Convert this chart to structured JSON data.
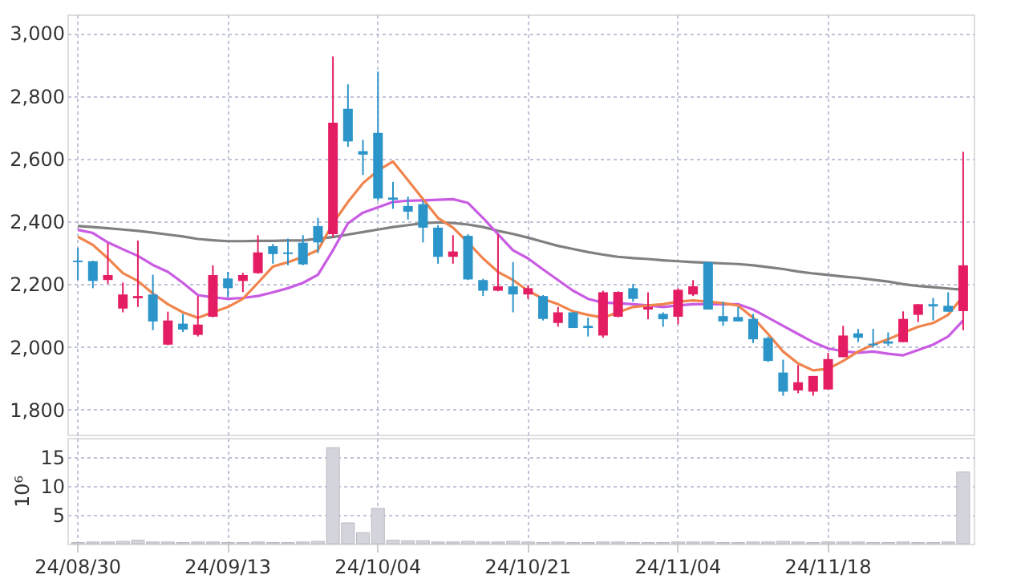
{
  "chart_data": [
    {
      "type": "candlestick",
      "categories": [
        null,
        null,
        null,
        null,
        null,
        null,
        null,
        null,
        null,
        null,
        null,
        null,
        null,
        null,
        null,
        null,
        null,
        null,
        null,
        null,
        null,
        null,
        null,
        null,
        null,
        null,
        null,
        null,
        null,
        null,
        null,
        null,
        null,
        null,
        null,
        null,
        null,
        null,
        null,
        null,
        null,
        null,
        null,
        null,
        null,
        null,
        null,
        null,
        null,
        null,
        null,
        null,
        null,
        null,
        null,
        null,
        null,
        null,
        null,
        null
      ],
      "ohlc": [
        [
          2275,
          2316,
          2213,
          2270
        ],
        [
          2273,
          2275,
          2187,
          2210
        ],
        [
          2213,
          2330,
          2201,
          2229
        ],
        [
          2122,
          2205,
          2110,
          2167
        ],
        [
          2155,
          2339,
          2127,
          2162
        ],
        [
          2167,
          2230,
          2053,
          2081
        ],
        [
          2007,
          2112,
          2005,
          2084
        ],
        [
          2074,
          2105,
          2047,
          2055
        ],
        [
          2038,
          2162,
          2033,
          2071
        ],
        [
          2096,
          2260,
          2094,
          2229
        ],
        [
          2218,
          2239,
          2158,
          2187
        ],
        [
          2210,
          2236,
          2175,
          2229
        ],
        [
          2235,
          2356,
          2233,
          2301
        ],
        [
          2321,
          2328,
          2265,
          2296
        ],
        [
          2301,
          2345,
          2260,
          2296
        ],
        [
          2332,
          2356,
          2260,
          2263
        ],
        [
          2385,
          2411,
          2299,
          2333
        ],
        [
          2359,
          2926,
          2351,
          2715
        ],
        [
          2759,
          2837,
          2638,
          2655
        ],
        [
          2624,
          2660,
          2548,
          2613
        ],
        [
          2682,
          2878,
          2466,
          2473
        ],
        [
          2476,
          2526,
          2440,
          2469
        ],
        [
          2449,
          2479,
          2406,
          2431
        ],
        [
          2455,
          2466,
          2333,
          2380
        ],
        [
          2380,
          2388,
          2265,
          2287
        ],
        [
          2287,
          2356,
          2265,
          2304
        ],
        [
          2354,
          2359,
          2213,
          2215
        ],
        [
          2213,
          2217,
          2162,
          2179
        ],
        [
          2179,
          2359,
          2177,
          2193
        ],
        [
          2193,
          2270,
          2110,
          2167
        ],
        [
          2167,
          2196,
          2153,
          2187
        ],
        [
          2162,
          2165,
          2084,
          2089
        ],
        [
          2076,
          2127,
          2064,
          2110
        ],
        [
          2110,
          2110,
          2060,
          2060
        ],
        [
          2067,
          2093,
          2033,
          2060
        ],
        [
          2036,
          2179,
          2029,
          2174
        ],
        [
          2096,
          2177,
          2094,
          2175
        ],
        [
          2187,
          2201,
          2144,
          2153
        ],
        [
          2119,
          2174,
          2088,
          2127
        ],
        [
          2105,
          2110,
          2064,
          2088
        ],
        [
          2096,
          2187,
          2072,
          2182
        ],
        [
          2167,
          2213,
          2162,
          2193
        ],
        [
          2270,
          2270,
          2119,
          2119
        ],
        [
          2098,
          2144,
          2067,
          2081
        ],
        [
          2095,
          2127,
          2081,
          2081
        ],
        [
          2089,
          2105,
          2012,
          2024
        ],
        [
          2028,
          2033,
          1952,
          1955
        ],
        [
          1918,
          1959,
          1844,
          1857
        ],
        [
          1861,
          1942,
          1852,
          1887
        ],
        [
          1857,
          1907,
          1844,
          1907
        ],
        [
          1864,
          1981,
          1864,
          1961
        ],
        [
          1967,
          2067,
          1967,
          2036
        ],
        [
          2043,
          2057,
          2015,
          2029
        ],
        [
          2010,
          2057,
          1998,
          2005
        ],
        [
          2017,
          2046,
          2002,
          2010
        ],
        [
          2015,
          2113,
          2015,
          2089
        ],
        [
          2102,
          2136,
          2079,
          2136
        ],
        [
          2136,
          2156,
          2084,
          2129
        ],
        [
          2131,
          2174,
          2112,
          2112
        ],
        [
          2114,
          2622,
          2053,
          2260
        ]
      ],
      "colors": [
        "#2b94c9",
        "#2b94c9",
        "#e31c64",
        "#e31c64",
        "#e31c64",
        "#2b94c9",
        "#e31c64",
        "#2b94c9",
        "#e31c64",
        "#e31c64",
        "#2b94c9",
        "#e31c64",
        "#e31c64",
        "#2b94c9",
        "#2b94c9",
        "#2b94c9",
        "#2b94c9",
        "#e31c64",
        "#2b94c9",
        "#2b94c9",
        "#2b94c9",
        "#2b94c9",
        "#2b94c9",
        "#2b94c9",
        "#2b94c9",
        "#e31c64",
        "#2b94c9",
        "#2b94c9",
        "#e31c64",
        "#2b94c9",
        "#e31c64",
        "#2b94c9",
        "#e31c64",
        "#2b94c9",
        "#2b94c9",
        "#e31c64",
        "#e31c64",
        "#2b94c9",
        "#e31c64",
        "#2b94c9",
        "#e31c64",
        "#e31c64",
        "#2b94c9",
        "#2b94c9",
        "#2b94c9",
        "#2b94c9",
        "#2b94c9",
        "#2b94c9",
        "#e31c64",
        "#e31c64",
        "#e31c64",
        "#e31c64",
        "#2b94c9",
        "#2b94c9",
        "#2b94c9",
        "#e31c64",
        "#e31c64",
        "#2b94c9",
        "#2b94c9",
        "#e31c64"
      ],
      "series": [
        {
          "type": "line",
          "color": "#808080",
          "values": [
            2385,
            2382,
            2378,
            2374,
            2370,
            2364,
            2358,
            2352,
            2344,
            2340,
            2337,
            2337,
            2338,
            2338,
            2339,
            2339,
            2345,
            2350,
            2358,
            2366,
            2374,
            2382,
            2388,
            2394,
            2397,
            2395,
            2390,
            2382,
            2370,
            2360,
            2348,
            2335,
            2322,
            2312,
            2302,
            2294,
            2287,
            2283,
            2280,
            2276,
            2273,
            2270,
            2268,
            2266,
            2264,
            2260,
            2254,
            2248,
            2240,
            2234,
            2229,
            2224,
            2220,
            2214,
            2208,
            2200,
            2194,
            2190,
            2186,
            2182
          ]
        },
        {
          "type": "line",
          "color": "#c95ce3",
          "values": [
            2373,
            2363,
            2333,
            2311,
            2290,
            2261,
            2239,
            2204,
            2165,
            2158,
            2153,
            2156,
            2162,
            2174,
            2187,
            2204,
            2230,
            2308,
            2394,
            2428,
            2445,
            2462,
            2466,
            2467,
            2469,
            2471,
            2459,
            2411,
            2359,
            2308,
            2282,
            2247,
            2213,
            2179,
            2153,
            2141,
            2139,
            2136,
            2132,
            2127,
            2132,
            2136,
            2136,
            2136,
            2136,
            2119,
            2093,
            2067,
            2041,
            2015,
            1995,
            1986,
            1981,
            1985,
            1978,
            1973,
            1990,
            2007,
            2033,
            2084
          ]
        },
        {
          "type": "line",
          "color": "#f0844c",
          "values": [
            2351,
            2325,
            2282,
            2235,
            2210,
            2170,
            2136,
            2110,
            2093,
            2110,
            2127,
            2153,
            2204,
            2256,
            2270,
            2287,
            2308,
            2394,
            2462,
            2522,
            2562,
            2591,
            2531,
            2471,
            2411,
            2380,
            2333,
            2282,
            2239,
            2213,
            2179,
            2153,
            2136,
            2113,
            2102,
            2093,
            2110,
            2127,
            2132,
            2136,
            2144,
            2148,
            2144,
            2139,
            2132,
            2093,
            2041,
            1985,
            1947,
            1925,
            1930,
            1955,
            1985,
            2007,
            2024,
            2045,
            2064,
            2076,
            2102,
            2162
          ]
        }
      ],
      "ylim": [
        1720,
        3060
      ],
      "yticks": [
        {
          "value": 1800,
          "label": "1,800"
        },
        {
          "value": 2000,
          "label": "2,000"
        },
        {
          "value": 2200,
          "label": "2,200"
        },
        {
          "value": 2400,
          "label": "2,400"
        },
        {
          "value": 2600,
          "label": "2,600"
        },
        {
          "value": 2800,
          "label": "2,800"
        },
        {
          "value": 3000,
          "label": "3,000"
        }
      ],
      "grid": true,
      "tick_labels": "y"
    },
    {
      "type": "bar",
      "categories": [
        "24/08/30",
        null,
        null,
        null,
        null,
        null,
        null,
        null,
        null,
        null,
        "24/09/13",
        null,
        null,
        null,
        null,
        null,
        null,
        null,
        null,
        null,
        "24/10/04",
        null,
        null,
        null,
        null,
        null,
        null,
        null,
        null,
        null,
        "24/10/21",
        null,
        null,
        null,
        null,
        null,
        null,
        null,
        null,
        null,
        "24/11/04",
        null,
        null,
        null,
        null,
        null,
        null,
        null,
        null,
        null,
        "24/11/18",
        null,
        null,
        null,
        null,
        null,
        null,
        null,
        null,
        null
      ],
      "values": [
        0.2,
        0.3,
        0.3,
        0.4,
        0.6,
        0.3,
        0.3,
        0.2,
        0.3,
        0.3,
        0.2,
        0.2,
        0.3,
        0.2,
        0.2,
        0.3,
        0.4,
        16.6,
        3.6,
        1.9,
        6.1,
        0.6,
        0.5,
        0.5,
        0.3,
        0.3,
        0.4,
        0.3,
        0.3,
        0.4,
        0.3,
        0.2,
        0.3,
        0.2,
        0.2,
        0.3,
        0.3,
        0.2,
        0.2,
        0.2,
        0.3,
        0.3,
        0.3,
        0.2,
        0.2,
        0.3,
        0.3,
        0.4,
        0.3,
        0.2,
        0.3,
        0.3,
        0.3,
        0.2,
        0.2,
        0.3,
        0.2,
        0.2,
        0.3,
        12.4
      ],
      "color": "#d4d4dc",
      "ylabel": "10⁶",
      "ylim": [
        0,
        18.3
      ],
      "yticks": [
        5,
        10,
        15
      ],
      "grid": true
    }
  ]
}
